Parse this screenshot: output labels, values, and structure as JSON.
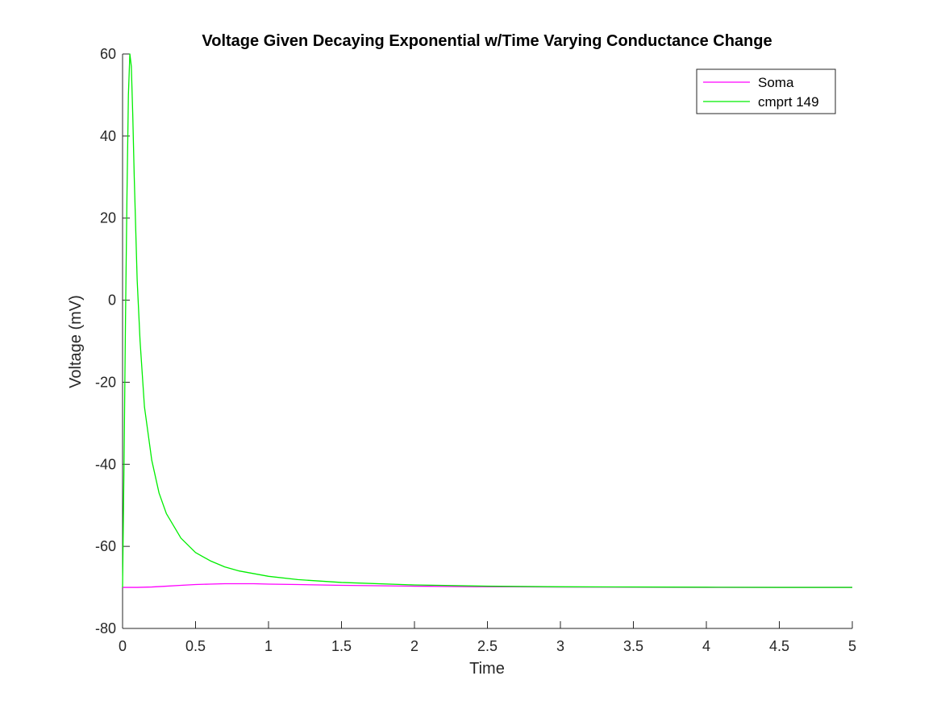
{
  "chart_data": {
    "type": "line",
    "title": "Voltage Given Decaying Exponential w/Time Varying Conductance Change",
    "xlabel": "Time",
    "ylabel": "Voltage (mV)",
    "xlim": [
      0,
      5
    ],
    "ylim": [
      -80,
      60
    ],
    "xticks": [
      0,
      0.5,
      1,
      1.5,
      2,
      2.5,
      3,
      3.5,
      4,
      4.5,
      5
    ],
    "xtick_labels": [
      "0",
      "0.5",
      "1",
      "1.5",
      "2",
      "2.5",
      "3",
      "3.5",
      "4",
      "4.5",
      "5"
    ],
    "yticks": [
      -80,
      -60,
      -40,
      -20,
      0,
      20,
      40,
      60
    ],
    "ytick_labels": [
      "-80",
      "-60",
      "-40",
      "-20",
      "0",
      "20",
      "40",
      "60"
    ],
    "grid": false,
    "legend_position": "top-right",
    "series": [
      {
        "name": "Soma",
        "color": "#ff00ff",
        "x": [
          0,
          0.1,
          0.2,
          0.3,
          0.4,
          0.5,
          0.6,
          0.7,
          0.8,
          0.9,
          1.0,
          1.2,
          1.5,
          2.0,
          2.5,
          3.0,
          3.5,
          4.0,
          4.5,
          5.0
        ],
        "y": [
          -70,
          -70,
          -69.9,
          -69.7,
          -69.5,
          -69.3,
          -69.2,
          -69.1,
          -69.1,
          -69.1,
          -69.2,
          -69.3,
          -69.5,
          -69.7,
          -69.85,
          -69.9,
          -69.95,
          -70,
          -70,
          -70
        ]
      },
      {
        "name": "cmprt 149",
        "color": "#00ee00",
        "x": [
          0,
          0.01,
          0.02,
          0.03,
          0.04,
          0.05,
          0.06,
          0.07,
          0.08,
          0.1,
          0.12,
          0.15,
          0.2,
          0.25,
          0.3,
          0.4,
          0.5,
          0.6,
          0.7,
          0.8,
          1.0,
          1.2,
          1.5,
          2.0,
          2.5,
          3.0,
          3.5,
          4.0,
          4.5,
          5.0
        ],
        "y": [
          -70,
          -40,
          -5,
          25,
          50,
          60,
          57,
          45,
          30,
          5,
          -10,
          -26,
          -39,
          -47,
          -52,
          -58,
          -61.5,
          -63.5,
          -65,
          -66,
          -67.3,
          -68.1,
          -68.8,
          -69.4,
          -69.7,
          -69.85,
          -69.9,
          -69.95,
          -70,
          -70
        ]
      }
    ]
  }
}
